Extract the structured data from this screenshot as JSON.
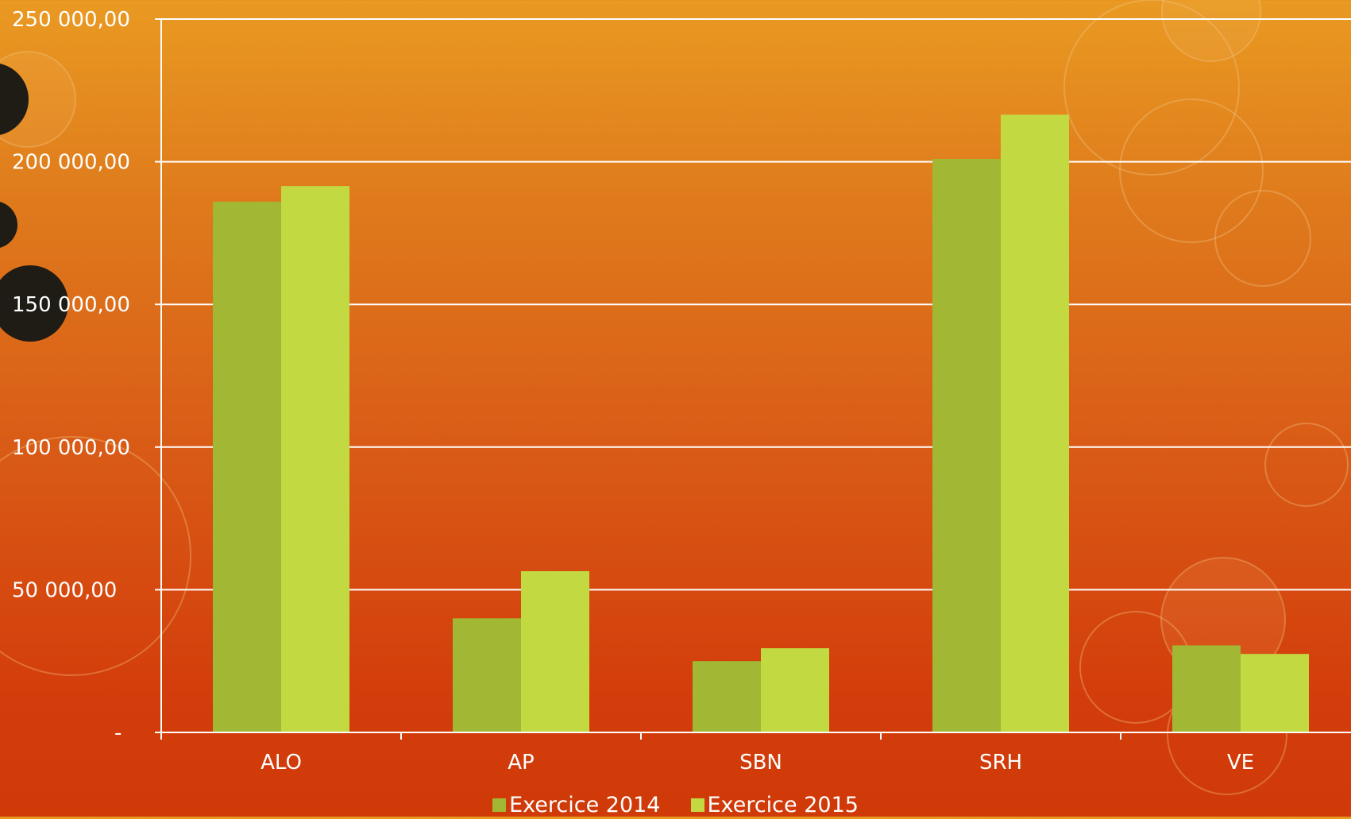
{
  "chart_data": {
    "type": "bar",
    "categories": [
      "ALO",
      "AP",
      "SBN",
      "SRH",
      "VE"
    ],
    "series": [
      {
        "name": "Exercice 2014",
        "values": [
          186000,
          40000,
          25000,
          201000,
          30500
        ],
        "color": "#a2b733"
      },
      {
        "name": "Exercice 2015",
        "values": [
          191500,
          56500,
          29500,
          216500,
          27500
        ],
        "color": "#c3d942"
      }
    ],
    "ylim": [
      0,
      250000
    ],
    "yticks": [
      0,
      50000,
      100000,
      150000,
      200000,
      250000
    ],
    "ytick_labels": [
      "-",
      "50 000,00",
      "100 000,00",
      "150 000,00",
      "200 000,00",
      "250 000,00"
    ],
    "grid": true,
    "legend_position": "bottom",
    "title": "",
    "xlabel": "",
    "ylabel": ""
  },
  "colors": {
    "gridline": "#ffffff",
    "text": "#ffffff"
  }
}
